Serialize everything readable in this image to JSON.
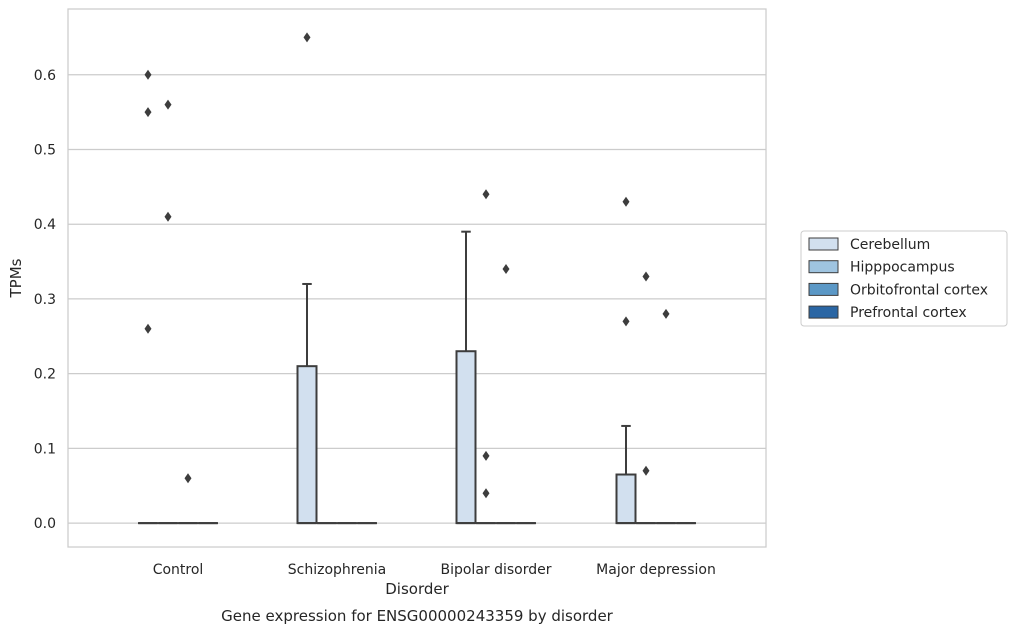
{
  "caption": "Gene expression for ENSG00000243359 by disorder",
  "chart_data": {
    "type": "box",
    "xlabel": "Disorder",
    "ylabel": "TPMs",
    "ylim": [
      -0.032,
      0.688
    ],
    "yticks": [
      0.0,
      0.1,
      0.2,
      0.3,
      0.4,
      0.5,
      0.6
    ],
    "ytick_labels": [
      "0.0",
      "0.1",
      "0.2",
      "0.3",
      "0.4",
      "0.5",
      "0.6"
    ],
    "grid": true,
    "legend_position": "right",
    "categories": [
      "Control",
      "Schizophrenia",
      "Bipolar disorder",
      "Major depression"
    ],
    "series": [
      {
        "name": "Cerebellum",
        "color": "#d2e0ef"
      },
      {
        "name": "Hipppocampus",
        "color": "#9fc4e0"
      },
      {
        "name": "Orbitofrontal cortex",
        "color": "#5b98c6"
      },
      {
        "name": "Prefrontal cortex",
        "color": "#2a66a4"
      }
    ],
    "boxes": [
      {
        "category": "Control",
        "series": "Cerebellum",
        "q1": 0,
        "median": 0,
        "q3": 0,
        "whisker_low": 0,
        "whisker_high": 0,
        "outliers": [
          0.26,
          0.55,
          0.6
        ]
      },
      {
        "category": "Control",
        "series": "Hipppocampus",
        "q1": 0,
        "median": 0,
        "q3": 0,
        "whisker_low": 0,
        "whisker_high": 0,
        "outliers": [
          0.41,
          0.56
        ]
      },
      {
        "category": "Control",
        "series": "Orbitofrontal cortex",
        "q1": 0,
        "median": 0,
        "q3": 0,
        "whisker_low": 0,
        "whisker_high": 0,
        "outliers": [
          0.06
        ]
      },
      {
        "category": "Control",
        "series": "Prefrontal cortex",
        "q1": 0,
        "median": 0,
        "q3": 0,
        "whisker_low": 0,
        "whisker_high": 0,
        "outliers": []
      },
      {
        "category": "Schizophrenia",
        "series": "Cerebellum",
        "q1": 0,
        "median": 0,
        "q3": 0.21,
        "whisker_low": 0,
        "whisker_high": 0.32,
        "outliers": [
          0.65
        ]
      },
      {
        "category": "Schizophrenia",
        "series": "Hipppocampus",
        "q1": 0,
        "median": 0,
        "q3": 0,
        "whisker_low": 0,
        "whisker_high": 0,
        "outliers": []
      },
      {
        "category": "Schizophrenia",
        "series": "Orbitofrontal cortex",
        "q1": 0,
        "median": 0,
        "q3": 0,
        "whisker_low": 0,
        "whisker_high": 0,
        "outliers": []
      },
      {
        "category": "Schizophrenia",
        "series": "Prefrontal cortex",
        "q1": 0,
        "median": 0,
        "q3": 0,
        "whisker_low": 0,
        "whisker_high": 0,
        "outliers": []
      },
      {
        "category": "Bipolar disorder",
        "series": "Cerebellum",
        "q1": 0,
        "median": 0,
        "q3": 0.23,
        "whisker_low": 0,
        "whisker_high": 0.39,
        "outliers": []
      },
      {
        "category": "Bipolar disorder",
        "series": "Hipppocampus",
        "q1": 0,
        "median": 0,
        "q3": 0,
        "whisker_low": 0,
        "whisker_high": 0,
        "outliers": [
          0.04,
          0.09,
          0.44
        ]
      },
      {
        "category": "Bipolar disorder",
        "series": "Orbitofrontal cortex",
        "q1": 0,
        "median": 0,
        "q3": 0,
        "whisker_low": 0,
        "whisker_high": 0,
        "outliers": [
          0.34
        ]
      },
      {
        "category": "Bipolar disorder",
        "series": "Prefrontal cortex",
        "q1": 0,
        "median": 0,
        "q3": 0,
        "whisker_low": 0,
        "whisker_high": 0,
        "outliers": []
      },
      {
        "category": "Major depression",
        "series": "Cerebellum",
        "q1": 0,
        "median": 0,
        "q3": 0.065,
        "whisker_low": 0,
        "whisker_high": 0.13,
        "outliers": [
          0.27,
          0.43
        ]
      },
      {
        "category": "Major depression",
        "series": "Hipppocampus",
        "q1": 0,
        "median": 0,
        "q3": 0,
        "whisker_low": 0,
        "whisker_high": 0,
        "outliers": [
          0.07,
          0.33
        ]
      },
      {
        "category": "Major depression",
        "series": "Orbitofrontal cortex",
        "q1": 0,
        "median": 0,
        "q3": 0,
        "whisker_low": 0,
        "whisker_high": 0,
        "outliers": [
          0.28
        ]
      },
      {
        "category": "Major depression",
        "series": "Prefrontal cortex",
        "q1": 0,
        "median": 0,
        "q3": 0,
        "whisker_low": 0,
        "whisker_high": 0,
        "outliers": []
      }
    ]
  }
}
